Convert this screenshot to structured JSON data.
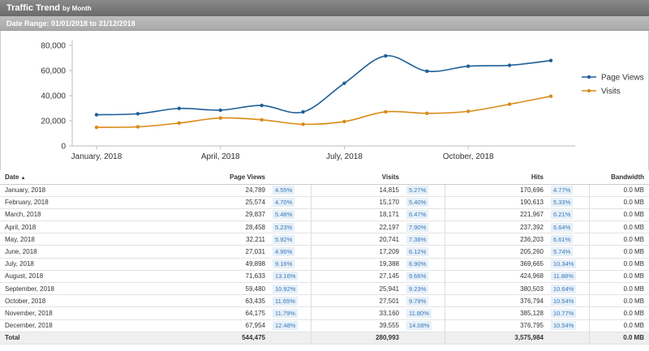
{
  "header": {
    "title": "Traffic Trend",
    "subtitle": "by Month",
    "date_range": "Date Range: 01/01/2018 to 31/12/2018"
  },
  "chart_data": {
    "type": "line",
    "categories": [
      "January, 2018",
      "February, 2018",
      "March, 2018",
      "April, 2018",
      "May, 2018",
      "June, 2018",
      "July, 2018",
      "August, 2018",
      "September, 2018",
      "October, 2018",
      "November, 2018",
      "December, 2018"
    ],
    "x_tick_labels": [
      "January, 2018",
      "April, 2018",
      "July, 2018",
      "October, 2018"
    ],
    "y_ticks": [
      0,
      20000,
      40000,
      60000,
      80000
    ],
    "y_tick_labels": [
      "0",
      "20,000",
      "40,000",
      "60,000",
      "80,000"
    ],
    "ylim": [
      0,
      80000
    ],
    "legend_position": "right",
    "series": [
      {
        "name": "Page Views",
        "color": "#1f5f97",
        "values": [
          24789,
          25574,
          29837,
          28458,
          32211,
          27031,
          49898,
          71633,
          59480,
          63435,
          64175,
          67954
        ]
      },
      {
        "name": "Visits",
        "color": "#d98a17",
        "values": [
          14815,
          15170,
          18171,
          22197,
          20741,
          17209,
          19388,
          27145,
          25941,
          27501,
          33160,
          39555
        ]
      }
    ]
  },
  "table": {
    "headers": {
      "date": "Date",
      "sort_icon": "▲",
      "page_views": "Page Views",
      "visits": "Visits",
      "hits": "Hits",
      "bandwidth": "Bandwidth"
    },
    "rows": [
      {
        "date": "January, 2018",
        "pv": "24,789",
        "pvp": "4.55%",
        "v": "14,815",
        "vp": "5.27%",
        "h": "170,696",
        "hp": "4.77%",
        "bw": "0.0 MB"
      },
      {
        "date": "February, 2018",
        "pv": "25,574",
        "pvp": "4.70%",
        "v": "15,170",
        "vp": "5.40%",
        "h": "190,613",
        "hp": "5.33%",
        "bw": "0.0 MB"
      },
      {
        "date": "March, 2018",
        "pv": "29,837",
        "pvp": "5.48%",
        "v": "18,171",
        "vp": "6.47%",
        "h": "221,967",
        "hp": "6.21%",
        "bw": "0.0 MB"
      },
      {
        "date": "April, 2018",
        "pv": "28,458",
        "pvp": "5.23%",
        "v": "22,197",
        "vp": "7.90%",
        "h": "237,392",
        "hp": "6.64%",
        "bw": "0.0 MB"
      },
      {
        "date": "May, 2018",
        "pv": "32,211",
        "pvp": "5.92%",
        "v": "20,741",
        "vp": "7.38%",
        "h": "236,203",
        "hp": "6.61%",
        "bw": "0.0 MB"
      },
      {
        "date": "June, 2018",
        "pv": "27,031",
        "pvp": "4.96%",
        "v": "17,209",
        "vp": "6.12%",
        "h": "205,260",
        "hp": "5.74%",
        "bw": "0.0 MB"
      },
      {
        "date": "July, 2018",
        "pv": "49,898",
        "pvp": "9.16%",
        "v": "19,388",
        "vp": "6.90%",
        "h": "369,665",
        "hp": "10.34%",
        "bw": "0.0 MB"
      },
      {
        "date": "August, 2018",
        "pv": "71,633",
        "pvp": "13.16%",
        "v": "27,145",
        "vp": "9.66%",
        "h": "424,968",
        "hp": "11.88%",
        "bw": "0.0 MB"
      },
      {
        "date": "September, 2018",
        "pv": "59,480",
        "pvp": "10.92%",
        "v": "25,941",
        "vp": "9.23%",
        "h": "380,503",
        "hp": "10.64%",
        "bw": "0.0 MB"
      },
      {
        "date": "October, 2018",
        "pv": "63,435",
        "pvp": "11.65%",
        "v": "27,501",
        "vp": "9.79%",
        "h": "376,794",
        "hp": "10.54%",
        "bw": "0.0 MB"
      },
      {
        "date": "November, 2018",
        "pv": "64,175",
        "pvp": "11.79%",
        "v": "33,160",
        "vp": "11.80%",
        "h": "385,128",
        "hp": "10.77%",
        "bw": "0.0 MB"
      },
      {
        "date": "December, 2018",
        "pv": "67,954",
        "pvp": "12.48%",
        "v": "39,555",
        "vp": "14.08%",
        "h": "376,795",
        "hp": "10.54%",
        "bw": "0.0 MB"
      }
    ],
    "total": {
      "label": "Total",
      "pv": "544,475",
      "v": "280,993",
      "h": "3,575,984",
      "bw": "0.0 MB"
    }
  }
}
